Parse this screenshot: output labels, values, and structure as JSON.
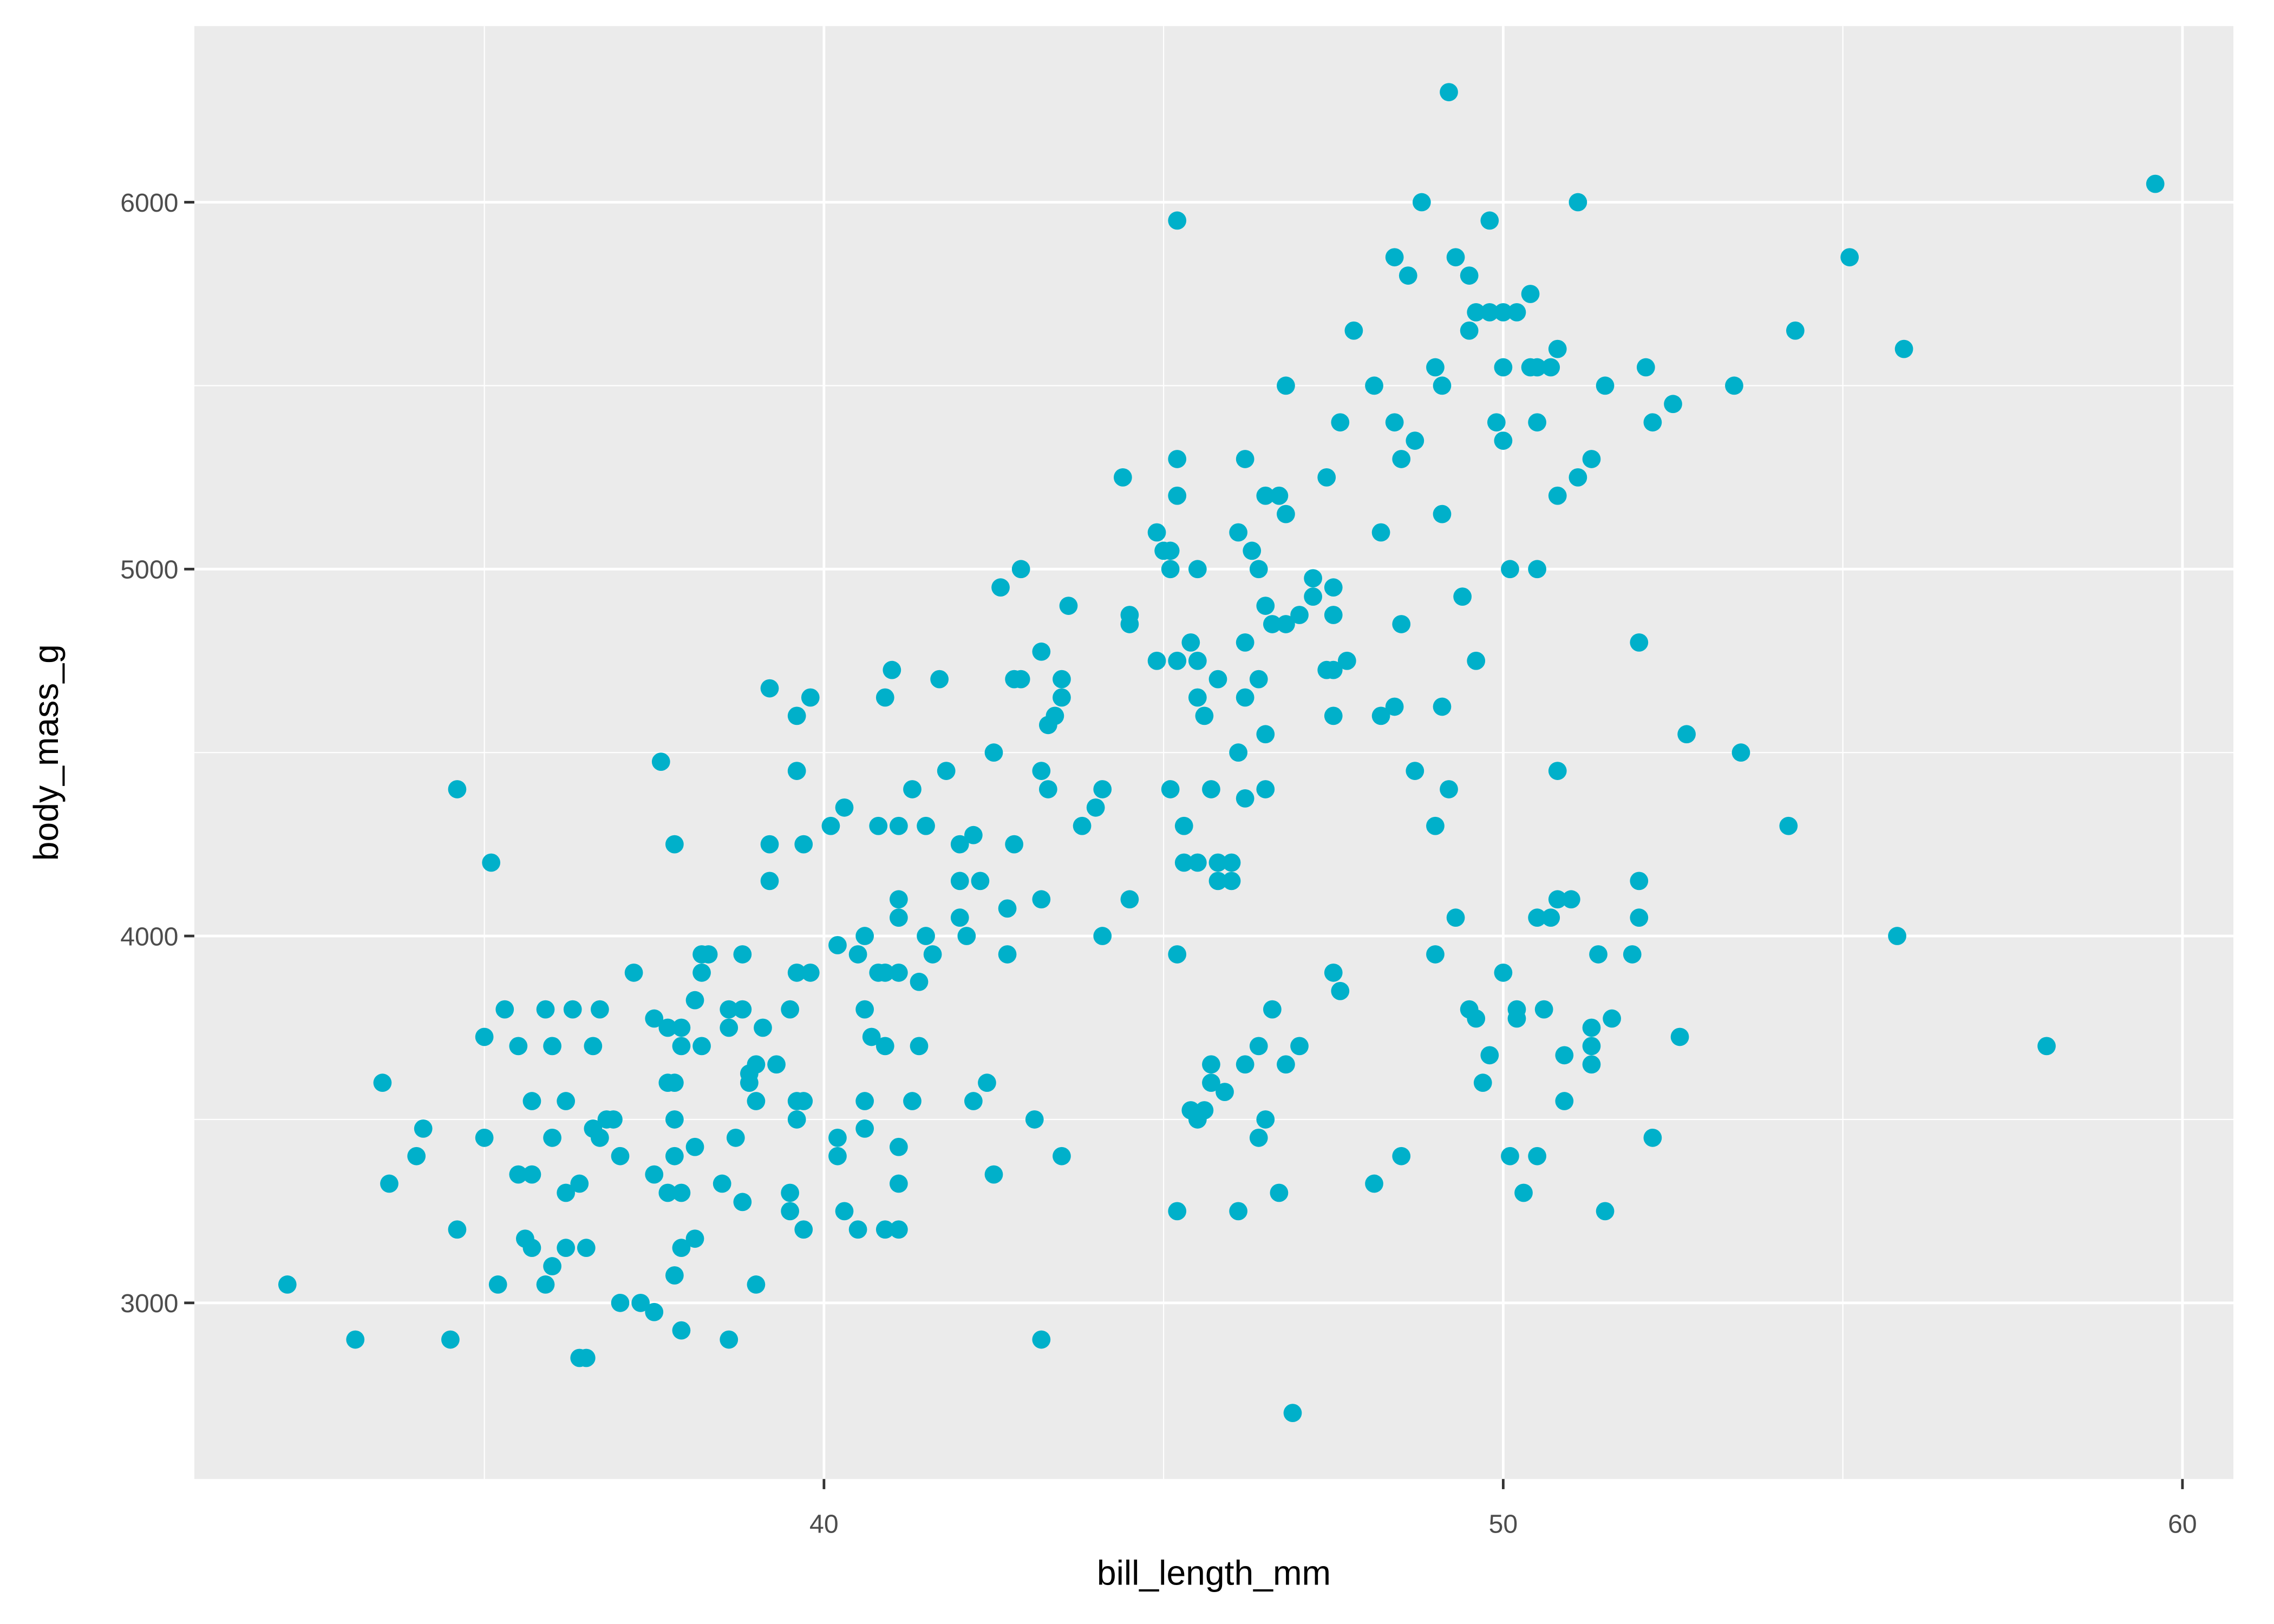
{
  "chart_data": {
    "type": "scatter",
    "x_label": "bill_length_mm",
    "y_label": "body_mass_g",
    "color": "#00b0ca",
    "grid": true,
    "xlim": [
      30.73,
      60.75
    ],
    "ylim": [
      2520,
      6480
    ],
    "xticks": [
      40,
      50,
      60
    ],
    "yticks": [
      3000,
      4000,
      5000,
      6000
    ],
    "x_minor_grid": [
      35,
      45,
      55
    ],
    "y_minor_grid": [
      3500,
      4500,
      5500
    ],
    "x": [
      49.2,
      59.6,
      48.8,
      51.1,
      45.2,
      49.8,
      55.1,
      48.4,
      49.3,
      48.6,
      49.5,
      50.4,
      49.6,
      49.8,
      50.0,
      50.2,
      49.5,
      54.3,
      47.8,
      50.8,
      55.9,
      49.0,
      50.0,
      50.4,
      50.5,
      50.7,
      52.1,
      46.8,
      48.1,
      49.1,
      51.5,
      53.4,
      52.5,
      47.6,
      48.4,
      49.9,
      50.5,
      52.2,
      48.7,
      50.0,
      45.2,
      46.2,
      48.5,
      51.3,
      44.4,
      47.4,
      51.1,
      45.2,
      46.5,
      46.7,
      50.8,
      46.8,
      49.1,
      44.9,
      46.1,
      48.2,
      45.0,
      45.1,
      46.3,
      42.9,
      45.1,
      45.5,
      46.4,
      50.1,
      50.5,
      42.6,
      47.2,
      47.5,
      47.2,
      49.4,
      43.6,
      46.5,
      44.5,
      47.0,
      47.5,
      44.5,
      46.6,
      46.8,
      48.5,
      45.4,
      46.2,
      52.0,
      43.2,
      44.9,
      45.2,
      45.5,
      47.7,
      49.6,
      47.4,
      47.5,
      41.0,
      42.8,
      42.9,
      43.5,
      41.7,
      45.8,
      46.4,
      39.2,
      39.8,
      40.9,
      43.5,
      45.5,
      46.2,
      39.6,
      43.4,
      43.3,
      45.6,
      47.5,
      48.2,
      49.1,
      48.4,
      52.7,
      46.5,
      53.5,
      42.5,
      46.1,
      37.6,
      39.6,
      41.8,
      43.2,
      48.7,
      50.8,
      34.6,
      41.3,
      43.3,
      44.1,
      45.1,
      45.7,
      46.5,
      49.2,
      40.3,
      44.0,
      46.2,
      40.1,
      40.8,
      41.1,
      41.5,
      43.8,
      45.3,
      49.0,
      54.2,
      42.2,
      37.8,
      39.2,
      39.7,
      42.0,
      42.8,
      35.1,
      45.3,
      45.5,
      45.8,
      46.0,
      39.2,
      42.0,
      42.3,
      45.8,
      46.0,
      52.0,
      41.1,
      43.2,
      44.5,
      50.8,
      51.0,
      42.7,
      41.1,
      42.0,
      49.3,
      50.5,
      50.7,
      52.0,
      40.2,
      40.6,
      41.5,
      42.1,
      44.1,
      55.8,
      38.2,
      38.3,
      38.8,
      40.5,
      41.6,
      42.7,
      45.2,
      49.0,
      51.4,
      51.9,
      37.2,
      38.2,
      39.6,
      39.8,
      40.8,
      40.9,
      41.1,
      47.5,
      50.0,
      41.4,
      47.6,
      38.1,
      35.3,
      35.9,
      36.3,
      36.7,
      38.6,
      38.8,
      39.5,
      40.6,
      46.6,
      49.5,
      50.2,
      50.6,
      49.6,
      50.2,
      51.6,
      37.5,
      37.7,
      37.9,
      38.6,
      39.1,
      51.3,
      35.0,
      40.7,
      52.6,
      35.5,
      36.0,
      36.6,
      37.9,
      38.2,
      40.9,
      41.4,
      46.4,
      47.0,
      51.3,
      58.0,
      49.8,
      50.9,
      45.7,
      46.2,
      46.8,
      39.0,
      39.3,
      51.3,
      38.9,
      33.5,
      37.7,
      37.8,
      38.9,
      42.4,
      45.7,
      49.7,
      45.9,
      35.7,
      36.2,
      39.0,
      39.6,
      39.7,
      40.6,
      41.3,
      42.2,
      50.9,
      45.4,
      45.6,
      45.5,
      36.8,
      36.9,
      37.8,
      39.6,
      43.1,
      46.5,
      34.1,
      36.6,
      40.6,
      36.7,
      35.0,
      36.0,
      38.7,
      40.2,
      46.4,
      52.2,
      38.1,
      41.1,
      34.0,
      37.0,
      37.8,
      40.2,
      43.5,
      48.5,
      50.1,
      50.5,
      35.5,
      35.7,
      37.5,
      33.6,
      36.4,
      38.5,
      41.1,
      48.1,
      42.5,
      37.7,
      37.9,
      36.2,
      39.5,
      46.7,
      50.3,
      38.8,
      40.3,
      39.5,
      45.2,
      46.1,
      51.5,
      34.6,
      39.7,
      40.5,
      40.9,
      41.1,
      35.6,
      38.1,
      35.7,
      36.2,
      36.5,
      37.9,
      36.0,
      37.8,
      32.1,
      35.2,
      35.9,
      39.0,
      37.0,
      37.3,
      37.5,
      37.9,
      33.1,
      34.5,
      38.6,
      43.2,
      36.4,
      36.5,
      46.9
    ],
    "values": [
      6300,
      6050,
      6000,
      6000,
      5950,
      5950,
      5850,
      5850,
      5850,
      5800,
      5800,
      5750,
      5700,
      5700,
      5700,
      5700,
      5650,
      5650,
      5650,
      5600,
      5600,
      5550,
      5550,
      5550,
      5550,
      5550,
      5550,
      5500,
      5500,
      5500,
      5500,
      5500,
      5450,
      5400,
      5400,
      5400,
      5400,
      5400,
      5350,
      5350,
      5300,
      5300,
      5300,
      5300,
      5250,
      5250,
      5250,
      5200,
      5200,
      5200,
      5200,
      5150,
      5150,
      5100,
      5100,
      5100,
      5050,
      5050,
      5050,
      5000,
      5000,
      5000,
      5000,
      5000,
      5000,
      4950,
      4975,
      4950,
      4925,
      4925,
      4900,
      4900,
      4875,
      4875,
      4875,
      4850,
      4850,
      4850,
      4850,
      4800,
      4800,
      4800,
      4775,
      4750,
      4750,
      4750,
      4750,
      4750,
      4725,
      4725,
      4725,
      4700,
      4700,
      4700,
      4700,
      4700,
      4700,
      4675,
      4650,
      4650,
      4650,
      4650,
      4650,
      4600,
      4600,
      4575,
      4600,
      4600,
      4600,
      4625,
      4625,
      4550,
      4550,
      4500,
      4500,
      4500,
      4475,
      4450,
      4450,
      4450,
      4450,
      4450,
      4400,
      4400,
      4400,
      4400,
      4400,
      4400,
      4400,
      4400,
      4350,
      4350,
      4375,
      4300,
      4300,
      4300,
      4300,
      4300,
      4300,
      4300,
      4300,
      4275,
      4250,
      4250,
      4250,
      4250,
      4250,
      4200,
      4200,
      4200,
      4200,
      4200,
      4150,
      4150,
      4150,
      4150,
      4150,
      4150,
      4100,
      4100,
      4100,
      4100,
      4100,
      4075,
      4050,
      4050,
      4050,
      4050,
      4050,
      4050,
      3975,
      4000,
      4000,
      4000,
      4000,
      4000,
      3950,
      3950,
      3950,
      3950,
      3950,
      3950,
      3950,
      3950,
      3950,
      3950,
      3900,
      3900,
      3900,
      3900,
      3900,
      3900,
      3900,
      3900,
      3900,
      3875,
      3850,
      3825,
      3800,
      3800,
      3800,
      3800,
      3800,
      3800,
      3800,
      3800,
      3800,
      3800,
      3800,
      3800,
      3775,
      3775,
      3775,
      3775,
      3750,
      3750,
      3750,
      3750,
      3750,
      3725,
      3725,
      3725,
      3700,
      3700,
      3700,
      3700,
      3700,
      3700,
      3700,
      3700,
      3700,
      3700,
      3700,
      3675,
      3675,
      3650,
      3650,
      3650,
      3650,
      3650,
      3650,
      3625,
      3600,
      3600,
      3600,
      3600,
      3600,
      3600,
      3600,
      3575,
      3550,
      3550,
      3550,
      3550,
      3550,
      3550,
      3550,
      3550,
      3550,
      3525,
      3525,
      3500,
      3500,
      3500,
      3500,
      3500,
      3500,
      3500,
      3475,
      3475,
      3475,
      3450,
      3450,
      3450,
      3450,
      3450,
      3450,
      3450,
      3425,
      3425,
      3400,
      3400,
      3400,
      3400,
      3400,
      3400,
      3400,
      3400,
      3350,
      3350,
      3350,
      3325,
      3325,
      3325,
      3325,
      3325,
      3350,
      3300,
      3300,
      3300,
      3300,
      3300,
      3300,
      3275,
      3250,
      3250,
      3250,
      3250,
      3250,
      3200,
      3200,
      3200,
      3200,
      3200,
      3175,
      3175,
      3150,
      3150,
      3150,
      3150,
      3100,
      3075,
      3050,
      3050,
      3050,
      3050,
      3000,
      3000,
      2975,
      2925,
      2900,
      2900,
      2900,
      2900,
      2850,
      2850,
      2700
    ]
  }
}
